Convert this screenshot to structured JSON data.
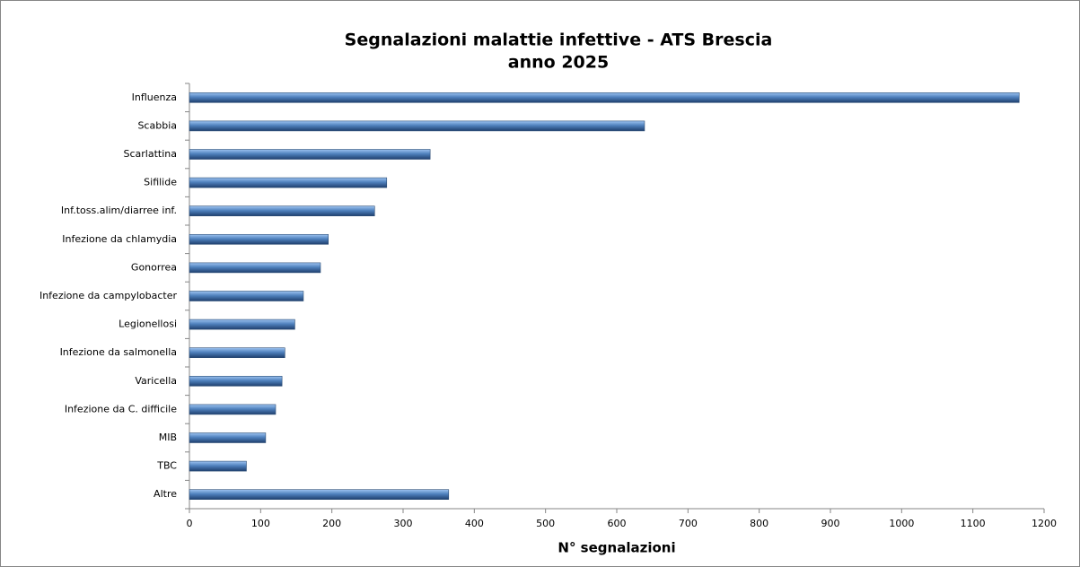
{
  "chart_data": {
    "type": "hbar",
    "title": "Segnalazioni malattie infettive - ATS Brescia",
    "subtitle": "anno 2025",
    "xlabel": "N° segnalazioni",
    "categories": [
      "Influenza",
      "Scabbia",
      "Scarlattina",
      "Sifilide",
      "Inf.toss.alim/diarree inf.",
      "Infezione da chlamydia",
      "Gonorrea",
      "Infezione da campylobacter",
      "Legionellosi",
      "Infezione da salmonella",
      "Varicella",
      "Infezione da C. difficile",
      "MIB",
      "TBC",
      "Altre"
    ],
    "values": [
      1165,
      639,
      338,
      277,
      260,
      195,
      184,
      160,
      148,
      134,
      130,
      121,
      107,
      80,
      364
    ],
    "color": "#4f81bd",
    "xlim": [
      0,
      1200
    ],
    "xticks": [
      0,
      100,
      200,
      300,
      400,
      500,
      600,
      700,
      800,
      900,
      1000,
      1100,
      1200
    ],
    "grid": false
  }
}
